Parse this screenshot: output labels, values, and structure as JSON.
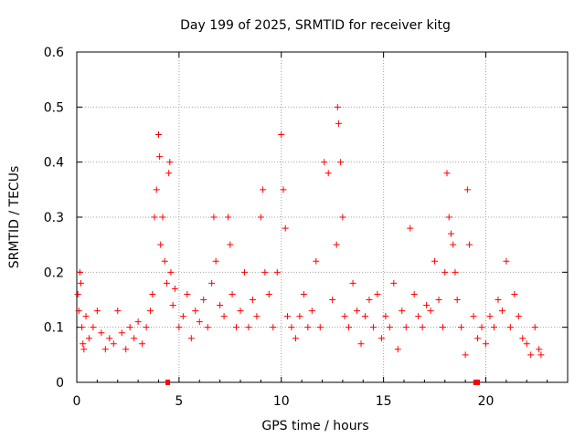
{
  "chart_data": {
    "type": "scatter",
    "title": "Day 199 of 2025, SRMTID for receiver kitg",
    "xlabel": "GPS time / hours",
    "ylabel": "SRMTID / TECUs",
    "xlim": [
      0,
      24
    ],
    "ylim": [
      0,
      0.6
    ],
    "x_ticks": [
      0,
      5,
      10,
      15,
      20
    ],
    "x_tick_labels": [
      "0",
      "5",
      "10",
      "15",
      "20"
    ],
    "y_ticks": [
      0,
      0.1,
      0.2,
      0.3,
      0.4,
      0.5,
      0.6
    ],
    "y_tick_labels": [
      "0",
      "0.1",
      "0.2",
      "0.3",
      "0.4",
      "0.5",
      "0.6"
    ],
    "grid": true,
    "marker": "+",
    "colors": {
      "points": "#ff0000",
      "grid": "#a0a0a0",
      "axes": "#000000"
    },
    "series": [
      {
        "name": "SRMTID",
        "x": [
          0.05,
          0.1,
          0.15,
          0.2,
          0.25,
          0.3,
          0.35,
          0.45,
          0.6,
          0.8,
          1.0,
          1.2,
          1.4,
          1.6,
          1.8,
          2.0,
          2.2,
          2.4,
          2.6,
          2.8,
          3.0,
          3.2,
          3.4,
          3.6,
          3.7,
          3.8,
          3.9,
          4.0,
          4.05,
          4.1,
          4.2,
          4.3,
          4.4,
          4.5,
          4.55,
          4.6,
          4.7,
          4.8,
          5.0,
          5.2,
          5.4,
          5.6,
          5.8,
          6.0,
          6.2,
          6.4,
          6.6,
          6.7,
          6.8,
          7.0,
          7.2,
          7.4,
          7.5,
          7.6,
          7.8,
          8.0,
          8.2,
          8.4,
          8.6,
          8.8,
          9.0,
          9.1,
          9.2,
          9.4,
          9.6,
          9.8,
          10.0,
          10.1,
          10.2,
          10.3,
          10.5,
          10.7,
          10.9,
          11.1,
          11.3,
          11.5,
          11.7,
          11.9,
          12.1,
          12.3,
          12.5,
          12.7,
          12.75,
          12.8,
          12.9,
          13.0,
          13.1,
          13.3,
          13.5,
          13.7,
          13.9,
          14.1,
          14.3,
          14.5,
          14.7,
          14.9,
          15.1,
          15.3,
          15.5,
          15.7,
          15.9,
          16.1,
          16.3,
          16.5,
          16.7,
          16.9,
          17.1,
          17.3,
          17.5,
          17.7,
          17.9,
          18.0,
          18.1,
          18.2,
          18.3,
          18.4,
          18.5,
          18.6,
          18.8,
          19.0,
          19.1,
          19.2,
          19.4,
          19.6,
          19.8,
          20.0,
          20.2,
          20.4,
          20.6,
          20.8,
          21.0,
          21.2,
          21.4,
          21.6,
          21.8,
          22.0,
          22.2,
          22.4,
          22.6,
          22.7
        ],
        "y": [
          0.16,
          0.13,
          0.2,
          0.18,
          0.1,
          0.07,
          0.06,
          0.12,
          0.08,
          0.1,
          0.13,
          0.09,
          0.06,
          0.08,
          0.07,
          0.13,
          0.09,
          0.06,
          0.1,
          0.08,
          0.11,
          0.07,
          0.1,
          0.13,
          0.16,
          0.3,
          0.35,
          0.45,
          0.41,
          0.25,
          0.3,
          0.22,
          0.18,
          0.38,
          0.4,
          0.2,
          0.14,
          0.17,
          0.1,
          0.12,
          0.16,
          0.08,
          0.13,
          0.11,
          0.15,
          0.1,
          0.18,
          0.3,
          0.22,
          0.14,
          0.12,
          0.3,
          0.25,
          0.16,
          0.1,
          0.13,
          0.2,
          0.1,
          0.15,
          0.12,
          0.3,
          0.35,
          0.2,
          0.16,
          0.1,
          0.2,
          0.45,
          0.35,
          0.28,
          0.12,
          0.1,
          0.08,
          0.12,
          0.16,
          0.1,
          0.13,
          0.22,
          0.1,
          0.4,
          0.38,
          0.15,
          0.25,
          0.5,
          0.47,
          0.4,
          0.3,
          0.12,
          0.1,
          0.18,
          0.13,
          0.07,
          0.12,
          0.15,
          0.1,
          0.16,
          0.08,
          0.12,
          0.1,
          0.18,
          0.06,
          0.13,
          0.1,
          0.28,
          0.16,
          0.12,
          0.1,
          0.14,
          0.13,
          0.22,
          0.15,
          0.1,
          0.2,
          0.38,
          0.3,
          0.27,
          0.25,
          0.2,
          0.15,
          0.1,
          0.05,
          0.35,
          0.25,
          0.12,
          0.08,
          0.1,
          0.07,
          0.12,
          0.1,
          0.15,
          0.13,
          0.22,
          0.1,
          0.16,
          0.12,
          0.08,
          0.07,
          0.05,
          0.1,
          0.06,
          0.05
        ]
      }
    ],
    "zero_markers": [
      4.45,
      19.5,
      19.6
    ]
  }
}
